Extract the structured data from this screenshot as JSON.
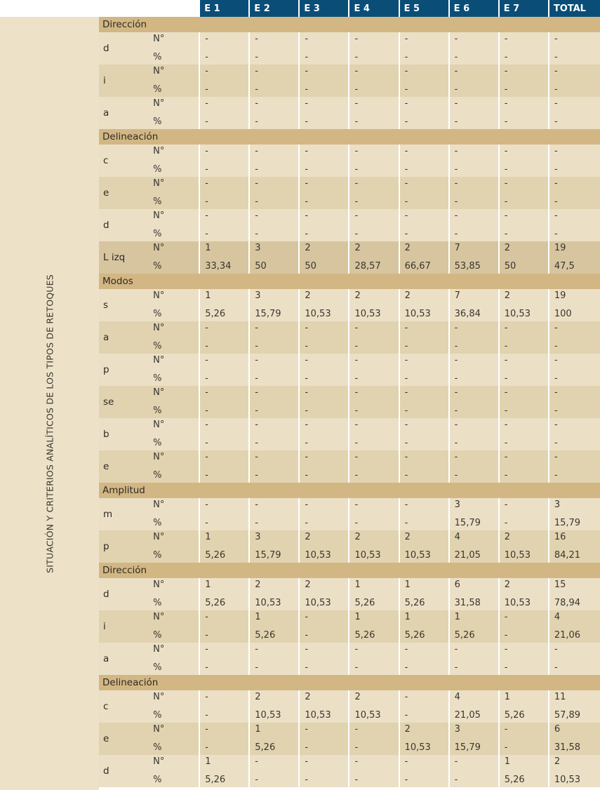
{
  "side_label": "SITUACIÓN Y CRITERIOS ANALÍTICOS DE LOS TIPOS DE RETOQUES",
  "headers": [
    "E 1",
    "E 2",
    "E 3",
    "E 4",
    "E 5",
    "E 6",
    "E 7",
    "TOTAL"
  ],
  "stat_labels": [
    "N°",
    "%"
  ],
  "rows": [
    {
      "section": "Dirección"
    },
    {
      "label": "d",
      "n": [
        "-",
        "-",
        "-",
        "-",
        "-",
        "-",
        "-",
        "-"
      ],
      "p": [
        "-",
        "-",
        "-",
        "-",
        "-",
        "-",
        "-",
        "-"
      ]
    },
    {
      "label": "i",
      "n": [
        "-",
        "-",
        "-",
        "-",
        "-",
        "-",
        "-",
        "-"
      ],
      "p": [
        "-",
        "-",
        "-",
        "-",
        "-",
        "-",
        "-",
        "-"
      ]
    },
    {
      "label": "a",
      "n": [
        "-",
        "-",
        "-",
        "-",
        "-",
        "-",
        "-",
        "-"
      ],
      "p": [
        "-",
        "-",
        "-",
        "-",
        "-",
        "-",
        "-",
        "-"
      ]
    },
    {
      "section": "Delineación"
    },
    {
      "label": "c",
      "n": [
        "-",
        "-",
        "-",
        "-",
        "-",
        "-",
        "-",
        "-"
      ],
      "p": [
        "-",
        "-",
        "-",
        "-",
        "-",
        "-",
        "-",
        "-"
      ]
    },
    {
      "label": "e",
      "n": [
        "-",
        "-",
        "-",
        "-",
        "-",
        "-",
        "-",
        "-"
      ],
      "p": [
        "-",
        "-",
        "-",
        "-",
        "-",
        "-",
        "-",
        "-"
      ]
    },
    {
      "label": "d",
      "n": [
        "-",
        "-",
        "-",
        "-",
        "-",
        "-",
        "-",
        "-"
      ],
      "p": [
        "-",
        "-",
        "-",
        "-",
        "-",
        "-",
        "-",
        "-"
      ]
    },
    {
      "label": "L izq",
      "highlight": true,
      "n": [
        "1",
        "3",
        "2",
        "2",
        "2",
        "7",
        "2",
        "19"
      ],
      "p": [
        "33,34",
        "50",
        "50",
        "28,57",
        "66,67",
        "53,85",
        "50",
        "47,5"
      ]
    },
    {
      "section": "Modos"
    },
    {
      "label": "s",
      "n": [
        "1",
        "3",
        "2",
        "2",
        "2",
        "7",
        "2",
        "19"
      ],
      "p": [
        "5,26",
        "15,79",
        "10,53",
        "10,53",
        "10,53",
        "36,84",
        "10,53",
        "100"
      ]
    },
    {
      "label": "a",
      "n": [
        "-",
        "-",
        "-",
        "-",
        "-",
        "-",
        "-",
        "-"
      ],
      "p": [
        "-",
        "-",
        "-",
        "-",
        "-",
        "-",
        "-",
        "-"
      ]
    },
    {
      "label": "p",
      "n": [
        "-",
        "-",
        "-",
        "-",
        "-",
        "-",
        "-",
        "-"
      ],
      "p": [
        "-",
        "-",
        "-",
        "-",
        "-",
        "-",
        "-",
        "-"
      ]
    },
    {
      "label": "se",
      "n": [
        "-",
        "-",
        "-",
        "-",
        "-",
        "-",
        "-",
        "-"
      ],
      "p": [
        "-",
        "-",
        "-",
        "-",
        "-",
        "-",
        "-",
        "-"
      ]
    },
    {
      "label": "b",
      "n": [
        "-",
        "-",
        "-",
        "-",
        "-",
        "-",
        "-",
        "-"
      ],
      "p": [
        "-",
        "-",
        "-",
        "-",
        "-",
        "-",
        "-",
        "-"
      ]
    },
    {
      "label": "e",
      "n": [
        "-",
        "-",
        "-",
        "-",
        "-",
        "-",
        "-",
        "-"
      ],
      "p": [
        "-",
        "-",
        "-",
        "-",
        "-",
        "-",
        "-",
        "-"
      ]
    },
    {
      "section": "Amplitud"
    },
    {
      "label": "m",
      "n": [
        "-",
        "-",
        "-",
        "-",
        "-",
        "3",
        "-",
        "3"
      ],
      "p": [
        "-",
        "-",
        "-",
        "-",
        "-",
        "15,79",
        "-",
        "15,79"
      ]
    },
    {
      "label": "p",
      "n": [
        "1",
        "3",
        "2",
        "2",
        "2",
        "4",
        "2",
        "16"
      ],
      "p": [
        "5,26",
        "15,79",
        "10,53",
        "10,53",
        "10,53",
        "21,05",
        "10,53",
        "84,21"
      ]
    },
    {
      "section": "Dirección"
    },
    {
      "label": "d",
      "n": [
        "1",
        "2",
        "2",
        "1",
        "1",
        "6",
        "2",
        "15"
      ],
      "p": [
        "5,26",
        "10,53",
        "10,53",
        "5,26",
        "5,26",
        "31,58",
        "10,53",
        "78,94"
      ]
    },
    {
      "label": "i",
      "n": [
        "-",
        "1",
        "-",
        "1",
        "1",
        "1",
        "-",
        "4"
      ],
      "p": [
        "-",
        "5,26",
        "-",
        "5,26",
        "5,26",
        "5,26",
        "-",
        "21,06"
      ]
    },
    {
      "label": "a",
      "n": [
        "-",
        "-",
        "-",
        "-",
        "-",
        "-",
        "-",
        "-"
      ],
      "p": [
        "-",
        "-",
        "-",
        "-",
        "-",
        "-",
        "-",
        "-"
      ]
    },
    {
      "section": "Delineación"
    },
    {
      "label": "c",
      "n": [
        "-",
        "2",
        "2",
        "2",
        "-",
        "4",
        "1",
        "11"
      ],
      "p": [
        "-",
        "10,53",
        "10,53",
        "10,53",
        "-",
        "21,05",
        "5,26",
        "57,89"
      ]
    },
    {
      "label": "e",
      "n": [
        "-",
        "1",
        "-",
        "-",
        "2",
        "3",
        "-",
        "6"
      ],
      "p": [
        "-",
        "5,26",
        "-",
        "-",
        "10,53",
        "15,79",
        "-",
        "31,58"
      ]
    },
    {
      "label": "d",
      "n": [
        "1",
        "-",
        "-",
        "-",
        "-",
        "-",
        "1",
        "2"
      ],
      "p": [
        "5,26",
        "-",
        "-",
        "-",
        "-",
        "-",
        "5,26",
        "10,53"
      ]
    }
  ]
}
